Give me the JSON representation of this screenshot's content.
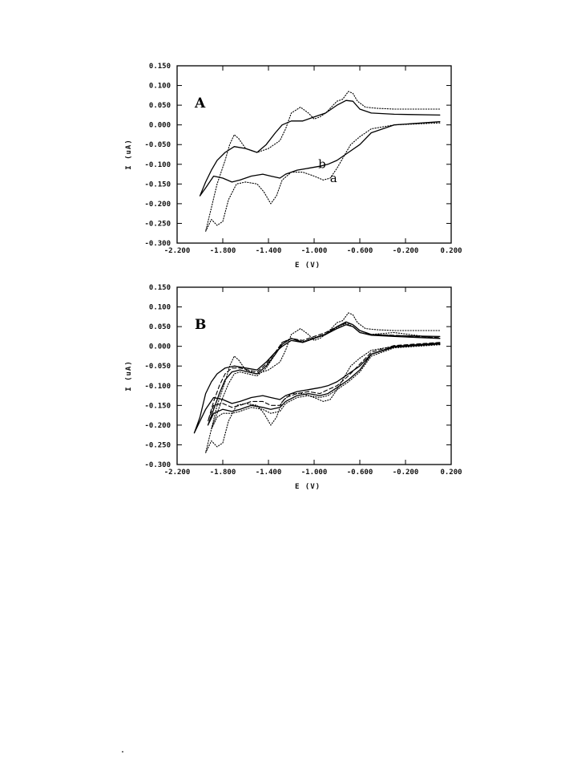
{
  "colors": {
    "ink": "#000000",
    "paper": "#ffffff"
  },
  "chart_data": [
    {
      "type": "line",
      "panel_label": "A",
      "xlabel": "E (V)",
      "ylabel": "I (uA)",
      "xlim": [
        -2.2,
        0.2
      ],
      "ylim": [
        -0.3,
        0.15
      ],
      "x_ticks": [
        -2.2,
        -1.8,
        -1.4,
        -1.0,
        -0.6,
        -0.2,
        0.2
      ],
      "x_tick_labels": [
        "-2.200",
        "-1.800",
        "-1.400",
        "-1.000",
        "-0.600",
        "-0.200",
        "0.200"
      ],
      "y_ticks": [
        0.15,
        0.1,
        0.05,
        0.0,
        -0.05,
        -0.1,
        -0.15,
        -0.2,
        -0.25,
        -0.3
      ],
      "y_tick_labels": [
        "0.150",
        "0.100",
        "0.050",
        "0.000",
        "-0.050",
        "-0.100",
        "-0.150",
        "-0.200",
        "-0.250",
        "-0.300"
      ],
      "grid": false,
      "annotations": [
        {
          "text": "b",
          "x": -0.93,
          "y": -0.11
        },
        {
          "text": "a",
          "x": -0.83,
          "y": -0.145
        }
      ],
      "series": [
        {
          "name": "a",
          "style": "dotted",
          "x": [
            0.1,
            -0.3,
            -0.5,
            -0.6,
            -0.68,
            -0.74,
            -0.8,
            -0.86,
            -0.92,
            -1.0,
            -1.1,
            -1.2,
            -1.28,
            -1.33,
            -1.38,
            -1.44,
            -1.5,
            -1.6,
            -1.68,
            -1.75,
            -1.8,
            -1.85,
            -1.9,
            -1.95,
            -1.9,
            -1.85,
            -1.78,
            -1.74,
            -1.7,
            -1.66,
            -1.6,
            -1.5,
            -1.4,
            -1.3,
            -1.25,
            -1.2,
            -1.12,
            -1.05,
            -1.0,
            -0.95,
            -0.9,
            -0.85,
            -0.8,
            -0.75,
            -0.7,
            -0.66,
            -0.62,
            -0.55,
            -0.45,
            -0.3,
            0.1
          ],
          "y": [
            0.005,
            0.0,
            -0.01,
            -0.03,
            -0.05,
            -0.08,
            -0.11,
            -0.135,
            -0.14,
            -0.13,
            -0.12,
            -0.12,
            -0.14,
            -0.18,
            -0.2,
            -0.17,
            -0.15,
            -0.145,
            -0.15,
            -0.19,
            -0.245,
            -0.255,
            -0.24,
            -0.27,
            -0.21,
            -0.15,
            -0.09,
            -0.05,
            -0.025,
            -0.035,
            -0.06,
            -0.07,
            -0.06,
            -0.04,
            -0.01,
            0.03,
            0.045,
            0.03,
            0.015,
            0.02,
            0.03,
            0.045,
            0.06,
            0.065,
            0.085,
            0.08,
            0.06,
            0.045,
            0.042,
            0.04,
            0.04
          ]
        },
        {
          "name": "b",
          "style": "solid",
          "x": [
            0.1,
            -0.3,
            -0.5,
            -0.6,
            -0.7,
            -0.8,
            -0.88,
            -0.95,
            -1.05,
            -1.15,
            -1.25,
            -1.3,
            -1.38,
            -1.45,
            -1.55,
            -1.65,
            -1.72,
            -1.8,
            -1.88,
            -1.95,
            -2.0,
            -1.95,
            -1.9,
            -1.85,
            -1.78,
            -1.7,
            -1.6,
            -1.5,
            -1.42,
            -1.34,
            -1.28,
            -1.2,
            -1.1,
            -1.0,
            -0.9,
            -0.8,
            -0.72,
            -0.66,
            -0.6,
            -0.5,
            -0.3,
            0.1
          ],
          "y": [
            0.008,
            0.0,
            -0.02,
            -0.05,
            -0.07,
            -0.09,
            -0.1,
            -0.105,
            -0.11,
            -0.115,
            -0.125,
            -0.135,
            -0.13,
            -0.125,
            -0.13,
            -0.14,
            -0.145,
            -0.135,
            -0.13,
            -0.16,
            -0.18,
            -0.145,
            -0.115,
            -0.09,
            -0.07,
            -0.055,
            -0.06,
            -0.07,
            -0.05,
            -0.02,
            0.0,
            0.01,
            0.01,
            0.02,
            0.03,
            0.05,
            0.062,
            0.06,
            0.04,
            0.03,
            0.027,
            0.025
          ]
        }
      ]
    },
    {
      "type": "line",
      "panel_label": "B",
      "xlabel": "E (V)",
      "ylabel": "I (uA)",
      "xlim": [
        -2.2,
        0.2
      ],
      "ylim": [
        -0.3,
        0.15
      ],
      "x_ticks": [
        -2.2,
        -1.8,
        -1.4,
        -1.0,
        -0.6,
        -0.2,
        0.2
      ],
      "x_tick_labels": [
        "-2.200",
        "-1.800",
        "-1.400",
        "-1.000",
        "-0.600",
        "-0.200",
        "0.200"
      ],
      "y_ticks": [
        0.15,
        0.1,
        0.05,
        0.0,
        -0.05,
        -0.1,
        -0.15,
        -0.2,
        -0.25,
        -0.3
      ],
      "y_tick_labels": [
        "0.150",
        "0.100",
        "0.050",
        "0.000",
        "-0.050",
        "-0.100",
        "-0.150",
        "-0.200",
        "-0.250",
        "-0.300"
      ],
      "grid": false,
      "annotations": [],
      "series": [
        {
          "style": "dotted",
          "x": [
            0.1,
            -0.3,
            -0.5,
            -0.6,
            -0.68,
            -0.74,
            -0.8,
            -0.86,
            -0.92,
            -1.0,
            -1.1,
            -1.2,
            -1.28,
            -1.33,
            -1.38,
            -1.44,
            -1.5,
            -1.6,
            -1.68,
            -1.75,
            -1.8,
            -1.85,
            -1.9,
            -1.95,
            -1.9,
            -1.85,
            -1.78,
            -1.74,
            -1.7,
            -1.66,
            -1.6,
            -1.5,
            -1.4,
            -1.3,
            -1.25,
            -1.2,
            -1.12,
            -1.05,
            -1.0,
            -0.95,
            -0.9,
            -0.85,
            -0.8,
            -0.75,
            -0.7,
            -0.66,
            -0.62,
            -0.55,
            -0.45,
            -0.3,
            0.1
          ],
          "y": [
            0.005,
            0.0,
            -0.01,
            -0.03,
            -0.05,
            -0.08,
            -0.11,
            -0.135,
            -0.14,
            -0.13,
            -0.12,
            -0.12,
            -0.14,
            -0.18,
            -0.2,
            -0.17,
            -0.15,
            -0.145,
            -0.15,
            -0.19,
            -0.245,
            -0.255,
            -0.24,
            -0.27,
            -0.21,
            -0.15,
            -0.09,
            -0.05,
            -0.025,
            -0.035,
            -0.06,
            -0.07,
            -0.06,
            -0.04,
            -0.01,
            0.03,
            0.045,
            0.03,
            0.015,
            0.02,
            0.03,
            0.045,
            0.06,
            0.065,
            0.085,
            0.08,
            0.06,
            0.045,
            0.042,
            0.04,
            0.04
          ]
        },
        {
          "style": "solid",
          "x": [
            0.1,
            -0.3,
            -0.5,
            -0.6,
            -0.7,
            -0.8,
            -0.88,
            -0.95,
            -1.05,
            -1.15,
            -1.25,
            -1.3,
            -1.38,
            -1.45,
            -1.55,
            -1.65,
            -1.72,
            -1.8,
            -1.88,
            -1.95,
            -2.05,
            -2.0,
            -1.95,
            -1.9,
            -1.85,
            -1.78,
            -1.7,
            -1.6,
            -1.5,
            -1.42,
            -1.34,
            -1.28,
            -1.2,
            -1.1,
            -1.0,
            -0.9,
            -0.8,
            -0.72,
            -0.66,
            -0.6,
            -0.5,
            -0.3,
            0.1
          ],
          "y": [
            0.008,
            0.0,
            -0.02,
            -0.05,
            -0.07,
            -0.09,
            -0.1,
            -0.105,
            -0.11,
            -0.115,
            -0.125,
            -0.135,
            -0.13,
            -0.125,
            -0.13,
            -0.14,
            -0.145,
            -0.135,
            -0.13,
            -0.16,
            -0.22,
            -0.18,
            -0.12,
            -0.09,
            -0.07,
            -0.055,
            -0.05,
            -0.055,
            -0.06,
            -0.04,
            -0.015,
            0.0,
            0.015,
            0.01,
            0.02,
            0.03,
            0.05,
            0.062,
            0.055,
            0.04,
            0.03,
            0.027,
            0.025
          ]
        },
        {
          "style": "dashed",
          "x": [
            0.1,
            -0.3,
            -0.5,
            -0.6,
            -0.7,
            -0.8,
            -0.88,
            -0.95,
            -1.05,
            -1.15,
            -1.25,
            -1.3,
            -1.38,
            -1.45,
            -1.55,
            -1.65,
            -1.72,
            -1.8,
            -1.88,
            -1.93,
            -1.88,
            -1.83,
            -1.78,
            -1.72,
            -1.65,
            -1.58,
            -1.5,
            -1.42,
            -1.34,
            -1.28,
            -1.2,
            -1.1,
            -1.0,
            -0.9,
            -0.8,
            -0.72,
            -0.66,
            -0.6,
            -0.5,
            -0.3,
            0.1
          ],
          "y": [
            0.01,
            0.002,
            -0.015,
            -0.045,
            -0.075,
            -0.1,
            -0.11,
            -0.12,
            -0.115,
            -0.12,
            -0.13,
            -0.15,
            -0.15,
            -0.14,
            -0.14,
            -0.15,
            -0.155,
            -0.145,
            -0.15,
            -0.19,
            -0.14,
            -0.1,
            -0.07,
            -0.055,
            -0.055,
            -0.06,
            -0.065,
            -0.045,
            -0.015,
            0.01,
            0.02,
            0.015,
            0.025,
            0.035,
            0.05,
            0.06,
            0.055,
            0.04,
            0.03,
            0.028,
            0.022
          ]
        },
        {
          "style": "solid",
          "x": [
            0.1,
            -0.3,
            -0.5,
            -0.6,
            -0.7,
            -0.8,
            -0.88,
            -0.95,
            -1.05,
            -1.15,
            -1.25,
            -1.3,
            -1.38,
            -1.45,
            -1.55,
            -1.65,
            -1.72,
            -1.8,
            -1.88,
            -1.93,
            -1.88,
            -1.83,
            -1.78,
            -1.72,
            -1.65,
            -1.58,
            -1.5,
            -1.42,
            -1.34,
            -1.28,
            -1.2,
            -1.1,
            -1.0,
            -0.9,
            -0.8,
            -0.72,
            -0.66,
            -0.6,
            -0.5,
            -0.3,
            0.1
          ],
          "y": [
            0.006,
            -0.002,
            -0.02,
            -0.06,
            -0.085,
            -0.105,
            -0.12,
            -0.125,
            -0.12,
            -0.125,
            -0.14,
            -0.155,
            -0.16,
            -0.155,
            -0.15,
            -0.16,
            -0.165,
            -0.16,
            -0.17,
            -0.2,
            -0.16,
            -0.12,
            -0.085,
            -0.065,
            -0.06,
            -0.065,
            -0.07,
            -0.05,
            -0.02,
            0.005,
            0.02,
            0.01,
            0.02,
            0.03,
            0.045,
            0.055,
            0.05,
            0.035,
            0.028,
            0.025,
            0.02
          ]
        },
        {
          "style": "dotted",
          "x": [
            0.1,
            -0.3,
            -0.5,
            -0.6,
            -0.7,
            -0.8,
            -0.88,
            -0.95,
            -1.05,
            -1.15,
            -1.25,
            -1.3,
            -1.38,
            -1.45,
            -1.55,
            -1.65,
            -1.72,
            -1.8,
            -1.85,
            -1.9,
            -1.85,
            -1.8,
            -1.75,
            -1.7,
            -1.65,
            -1.58,
            -1.5,
            -1.42,
            -1.34,
            -1.28,
            -1.2,
            -1.1,
            -1.0,
            -0.9,
            -0.8,
            -0.72,
            -0.66,
            -0.6,
            -0.5,
            -0.3,
            0.1
          ],
          "y": [
            0.004,
            -0.004,
            -0.025,
            -0.065,
            -0.09,
            -0.11,
            -0.125,
            -0.13,
            -0.125,
            -0.13,
            -0.145,
            -0.165,
            -0.17,
            -0.16,
            -0.155,
            -0.165,
            -0.17,
            -0.17,
            -0.18,
            -0.21,
            -0.17,
            -0.13,
            -0.095,
            -0.07,
            -0.065,
            -0.07,
            -0.075,
            -0.055,
            -0.02,
            0.01,
            0.02,
            0.012,
            0.022,
            0.032,
            0.048,
            0.058,
            0.05,
            0.035,
            0.03,
            0.035,
            0.02
          ]
        }
      ]
    }
  ]
}
